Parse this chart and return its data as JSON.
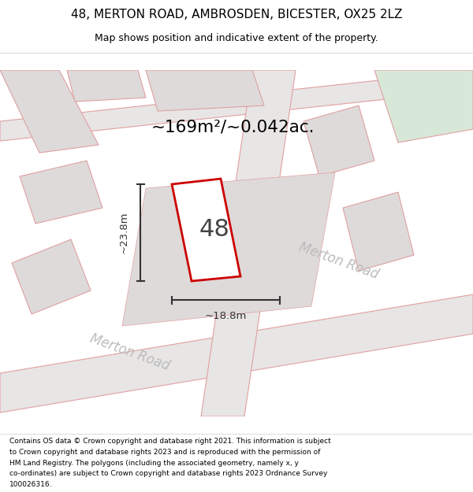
{
  "title_line1": "48, MERTON ROAD, AMBROSDEN, BICESTER, OX25 2LZ",
  "title_line2": "Map shows position and indicative extent of the property.",
  "area_label": "~169m²/~0.042ac.",
  "number_label": "48",
  "dim_vertical": "~23.8m",
  "dim_horizontal": "~18.8m",
  "road_label_1": "Merton Road",
  "road_label_2": "Merton Road",
  "footer_lines": [
    "Contains OS data © Crown copyright and database right 2021. This information is subject",
    "to Crown copyright and database rights 2023 and is reproduced with the permission of",
    "HM Land Registry. The polygons (including the associated geometry, namely x, y",
    "co-ordinates) are subject to Crown copyright and database rights 2023 Ordnance Survey",
    "100026316."
  ],
  "map_bg": "#f2efef",
  "road_fill": "#e8e5e5",
  "block_fill": "#dedada",
  "plot_fill": "#ffffff",
  "plot_outline": "#cc0000",
  "street_line_color": "#e0a0a0",
  "dim_line_color": "#333333",
  "road_text_color": "#bbbbbb",
  "title_color": "#000000",
  "footer_color": "#000000",
  "area_label_color": "#000000",
  "green_fill": "#d8e8d8"
}
